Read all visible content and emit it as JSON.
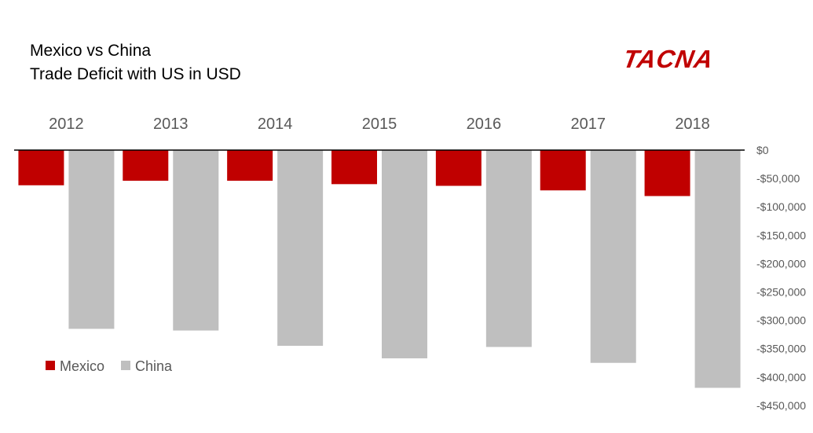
{
  "title_line1": "Mexico vs China",
  "title_line2": "Trade Deficit with US in USD",
  "logo_text": "TACNA",
  "colors": {
    "mexico": "#c00000",
    "china": "#bfbfbf",
    "logo": "#c00000",
    "axis": "#000000",
    "text": "#595959"
  },
  "chart_data": {
    "type": "bar",
    "categories": [
      "2012",
      "2013",
      "2014",
      "2015",
      "2016",
      "2017",
      "2018"
    ],
    "series": [
      {
        "name": "Mexico",
        "values": [
          -62000,
          -54000,
          -54000,
          -60000,
          -63000,
          -71000,
          -81000
        ]
      },
      {
        "name": "China",
        "values": [
          -315000,
          -318000,
          -345000,
          -367000,
          -347000,
          -375000,
          -419000
        ]
      }
    ],
    "y_ticks": [
      "$0",
      "-$50,000",
      "-$100,000",
      "-$150,000",
      "-$200,000",
      "-$250,000",
      "-$300,000",
      "-$350,000",
      "-$400,000",
      "-$450,000"
    ],
    "ylim": [
      -450000,
      0
    ],
    "category_axis": "top",
    "value_axis": "right",
    "legend_position": "bottom-left",
    "grid": false
  }
}
